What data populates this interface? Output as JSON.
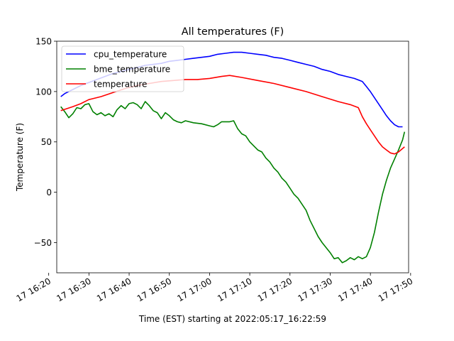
{
  "chart_data": {
    "type": "line",
    "title": "All temperatures (F)",
    "xlabel": "Time (EST) starting at 2022:05:17_16:22:59",
    "ylabel": "Temperature (F)",
    "xlim": [
      "2022-05-17 16:22:00",
      "2022-05-17 17:49:30"
    ],
    "ylim": [
      -80,
      150
    ],
    "x_ticks": [
      {
        "time": "2022-05-17 16:20",
        "label": "17 16:20"
      },
      {
        "time": "2022-05-17 16:30",
        "label": "17 16:30"
      },
      {
        "time": "2022-05-17 16:40",
        "label": "17 16:40"
      },
      {
        "time": "2022-05-17 16:50",
        "label": "17 16:50"
      },
      {
        "time": "2022-05-17 17:00",
        "label": "17 17:00"
      },
      {
        "time": "2022-05-17 17:10",
        "label": "17 17:10"
      },
      {
        "time": "2022-05-17 17:20",
        "label": "17 17:20"
      },
      {
        "time": "2022-05-17 17:30",
        "label": "17 17:30"
      },
      {
        "time": "2022-05-17 17:40",
        "label": "17 17:40"
      },
      {
        "time": "2022-05-17 17:50",
        "label": "17 17:50"
      }
    ],
    "y_ticks": [
      {
        "value": -50,
        "label": "−50"
      },
      {
        "value": 0,
        "label": "0"
      },
      {
        "value": 50,
        "label": "50"
      },
      {
        "value": 100,
        "label": "100"
      },
      {
        "value": 150,
        "label": "150"
      }
    ],
    "grid": false,
    "legend_position": "top-left",
    "series": [
      {
        "name": "cpu_temperature",
        "color": "#0000ff",
        "points": [
          [
            "2022-05-17 16:23",
            95
          ],
          [
            "2022-05-17 16:24",
            98
          ],
          [
            "2022-05-17 16:26",
            102
          ],
          [
            "2022-05-17 16:28",
            106
          ],
          [
            "2022-05-17 16:30",
            109
          ],
          [
            "2022-05-17 16:32",
            112
          ],
          [
            "2022-05-17 16:34",
            115
          ],
          [
            "2022-05-17 16:36",
            118
          ],
          [
            "2022-05-17 16:38",
            120
          ],
          [
            "2022-05-17 16:40",
            122
          ],
          [
            "2022-05-17 16:42",
            124
          ],
          [
            "2022-05-17 16:44",
            126
          ],
          [
            "2022-05-17 16:46",
            127
          ],
          [
            "2022-05-17 16:48",
            128
          ],
          [
            "2022-05-17 16:50",
            130
          ],
          [
            "2022-05-17 16:52",
            131
          ],
          [
            "2022-05-17 16:54",
            132
          ],
          [
            "2022-05-17 16:56",
            133
          ],
          [
            "2022-05-17 16:58",
            134
          ],
          [
            "2022-05-17 17:00",
            135
          ],
          [
            "2022-05-17 17:02",
            137
          ],
          [
            "2022-05-17 17:04",
            138
          ],
          [
            "2022-05-17 17:06",
            139
          ],
          [
            "2022-05-17 17:08",
            139
          ],
          [
            "2022-05-17 17:10",
            138
          ],
          [
            "2022-05-17 17:12",
            137
          ],
          [
            "2022-05-17 17:14",
            136
          ],
          [
            "2022-05-17 17:16",
            134
          ],
          [
            "2022-05-17 17:18",
            133
          ],
          [
            "2022-05-17 17:20",
            131
          ],
          [
            "2022-05-17 17:22",
            129
          ],
          [
            "2022-05-17 17:24",
            127
          ],
          [
            "2022-05-17 17:26",
            125
          ],
          [
            "2022-05-17 17:28",
            122
          ],
          [
            "2022-05-17 17:30",
            120
          ],
          [
            "2022-05-17 17:32",
            117
          ],
          [
            "2022-05-17 17:34",
            115
          ],
          [
            "2022-05-17 17:36",
            113
          ],
          [
            "2022-05-17 17:38",
            110
          ],
          [
            "2022-05-17 17:39",
            105
          ],
          [
            "2022-05-17 17:40",
            100
          ],
          [
            "2022-05-17 17:41",
            94
          ],
          [
            "2022-05-17 17:42",
            88
          ],
          [
            "2022-05-17 17:43",
            82
          ],
          [
            "2022-05-17 17:44",
            76
          ],
          [
            "2022-05-17 17:45",
            71
          ],
          [
            "2022-05-17 17:46",
            67
          ],
          [
            "2022-05-17 17:47",
            65
          ],
          [
            "2022-05-17 17:48",
            65
          ]
        ]
      },
      {
        "name": "bme_temperature",
        "color": "#008000",
        "points": [
          [
            "2022-05-17 16:23",
            85
          ],
          [
            "2022-05-17 16:24",
            80
          ],
          [
            "2022-05-17 16:25",
            74
          ],
          [
            "2022-05-17 16:26",
            78
          ],
          [
            "2022-05-17 16:27",
            84
          ],
          [
            "2022-05-17 16:28",
            83
          ],
          [
            "2022-05-17 16:29",
            87
          ],
          [
            "2022-05-17 16:30",
            88
          ],
          [
            "2022-05-17 16:31",
            80
          ],
          [
            "2022-05-17 16:32",
            77
          ],
          [
            "2022-05-17 16:33",
            79
          ],
          [
            "2022-05-17 16:34",
            76
          ],
          [
            "2022-05-17 16:35",
            78
          ],
          [
            "2022-05-17 16:36",
            75
          ],
          [
            "2022-05-17 16:37",
            82
          ],
          [
            "2022-05-17 16:38",
            86
          ],
          [
            "2022-05-17 16:39",
            83
          ],
          [
            "2022-05-17 16:40",
            88
          ],
          [
            "2022-05-17 16:41",
            89
          ],
          [
            "2022-05-17 16:42",
            87
          ],
          [
            "2022-05-17 16:43",
            83
          ],
          [
            "2022-05-17 16:44",
            90
          ],
          [
            "2022-05-17 16:45",
            86
          ],
          [
            "2022-05-17 16:46",
            81
          ],
          [
            "2022-05-17 16:47",
            79
          ],
          [
            "2022-05-17 16:48",
            73
          ],
          [
            "2022-05-17 16:49",
            79
          ],
          [
            "2022-05-17 16:50",
            76
          ],
          [
            "2022-05-17 16:51",
            72
          ],
          [
            "2022-05-17 16:52",
            70
          ],
          [
            "2022-05-17 16:53",
            69
          ],
          [
            "2022-05-17 16:54",
            71
          ],
          [
            "2022-05-17 16:56",
            69
          ],
          [
            "2022-05-17 16:58",
            68
          ],
          [
            "2022-05-17 17:00",
            66
          ],
          [
            "2022-05-17 17:01",
            65
          ],
          [
            "2022-05-17 17:02",
            67
          ],
          [
            "2022-05-17 17:03",
            70
          ],
          [
            "2022-05-17 17:05",
            70
          ],
          [
            "2022-05-17 17:06",
            71
          ],
          [
            "2022-05-17 17:07",
            63
          ],
          [
            "2022-05-17 17:08",
            58
          ],
          [
            "2022-05-17 17:09",
            56
          ],
          [
            "2022-05-17 17:10",
            50
          ],
          [
            "2022-05-17 17:11",
            46
          ],
          [
            "2022-05-17 17:12",
            42
          ],
          [
            "2022-05-17 17:13",
            40
          ],
          [
            "2022-05-17 17:14",
            34
          ],
          [
            "2022-05-17 17:15",
            30
          ],
          [
            "2022-05-17 17:16",
            24
          ],
          [
            "2022-05-17 17:17",
            20
          ],
          [
            "2022-05-17 17:18",
            14
          ],
          [
            "2022-05-17 17:19",
            10
          ],
          [
            "2022-05-17 17:20",
            4
          ],
          [
            "2022-05-17 17:21",
            -2
          ],
          [
            "2022-05-17 17:22",
            -6
          ],
          [
            "2022-05-17 17:23",
            -12
          ],
          [
            "2022-05-17 17:24",
            -18
          ],
          [
            "2022-05-17 17:25",
            -28
          ],
          [
            "2022-05-17 17:26",
            -36
          ],
          [
            "2022-05-17 17:27",
            -44
          ],
          [
            "2022-05-17 17:28",
            -50
          ],
          [
            "2022-05-17 17:29",
            -55
          ],
          [
            "2022-05-17 17:30",
            -60
          ],
          [
            "2022-05-17 17:31",
            -66
          ],
          [
            "2022-05-17 17:32",
            -65
          ],
          [
            "2022-05-17 17:33",
            -70
          ],
          [
            "2022-05-17 17:34",
            -68
          ],
          [
            "2022-05-17 17:35",
            -65
          ],
          [
            "2022-05-17 17:36",
            -67
          ],
          [
            "2022-05-17 17:37",
            -64
          ],
          [
            "2022-05-17 17:38",
            -66
          ],
          [
            "2022-05-17 17:39",
            -64
          ],
          [
            "2022-05-17 17:40",
            -55
          ],
          [
            "2022-05-17 17:41",
            -40
          ],
          [
            "2022-05-17 17:42",
            -20
          ],
          [
            "2022-05-17 17:43",
            -2
          ],
          [
            "2022-05-17 17:44",
            12
          ],
          [
            "2022-05-17 17:45",
            24
          ],
          [
            "2022-05-17 17:46",
            33
          ],
          [
            "2022-05-17 17:47",
            42
          ],
          [
            "2022-05-17 17:48",
            52
          ],
          [
            "2022-05-17 17:48:30",
            60
          ]
        ]
      },
      {
        "name": "temperature",
        "color": "#ff0000",
        "points": [
          [
            "2022-05-17 16:23",
            81
          ],
          [
            "2022-05-17 16:26",
            85
          ],
          [
            "2022-05-17 16:28",
            88
          ],
          [
            "2022-05-17 16:30",
            92
          ],
          [
            "2022-05-17 16:33",
            95
          ],
          [
            "2022-05-17 16:36",
            99
          ],
          [
            "2022-05-17 16:39",
            103
          ],
          [
            "2022-05-17 16:42",
            106
          ],
          [
            "2022-05-17 16:45",
            108
          ],
          [
            "2022-05-17 16:48",
            110
          ],
          [
            "2022-05-17 16:51",
            111
          ],
          [
            "2022-05-17 16:54",
            112
          ],
          [
            "2022-05-17 16:57",
            112
          ],
          [
            "2022-05-17 17:00",
            113
          ],
          [
            "2022-05-17 17:03",
            115
          ],
          [
            "2022-05-17 17:05",
            116
          ],
          [
            "2022-05-17 17:08",
            114
          ],
          [
            "2022-05-17 17:12",
            111
          ],
          [
            "2022-05-17 17:16",
            108
          ],
          [
            "2022-05-17 17:20",
            104
          ],
          [
            "2022-05-17 17:24",
            100
          ],
          [
            "2022-05-17 17:28",
            95
          ],
          [
            "2022-05-17 17:32",
            90
          ],
          [
            "2022-05-17 17:35",
            87
          ],
          [
            "2022-05-17 17:37",
            84
          ],
          [
            "2022-05-17 17:38",
            75
          ],
          [
            "2022-05-17 17:39",
            68
          ],
          [
            "2022-05-17 17:40",
            62
          ],
          [
            "2022-05-17 17:41",
            56
          ],
          [
            "2022-05-17 17:42",
            50
          ],
          [
            "2022-05-17 17:43",
            45
          ],
          [
            "2022-05-17 17:44",
            42
          ],
          [
            "2022-05-17 17:45",
            39
          ],
          [
            "2022-05-17 17:46",
            38
          ],
          [
            "2022-05-17 17:47",
            40
          ],
          [
            "2022-05-17 17:48:30",
            45
          ]
        ]
      }
    ]
  }
}
